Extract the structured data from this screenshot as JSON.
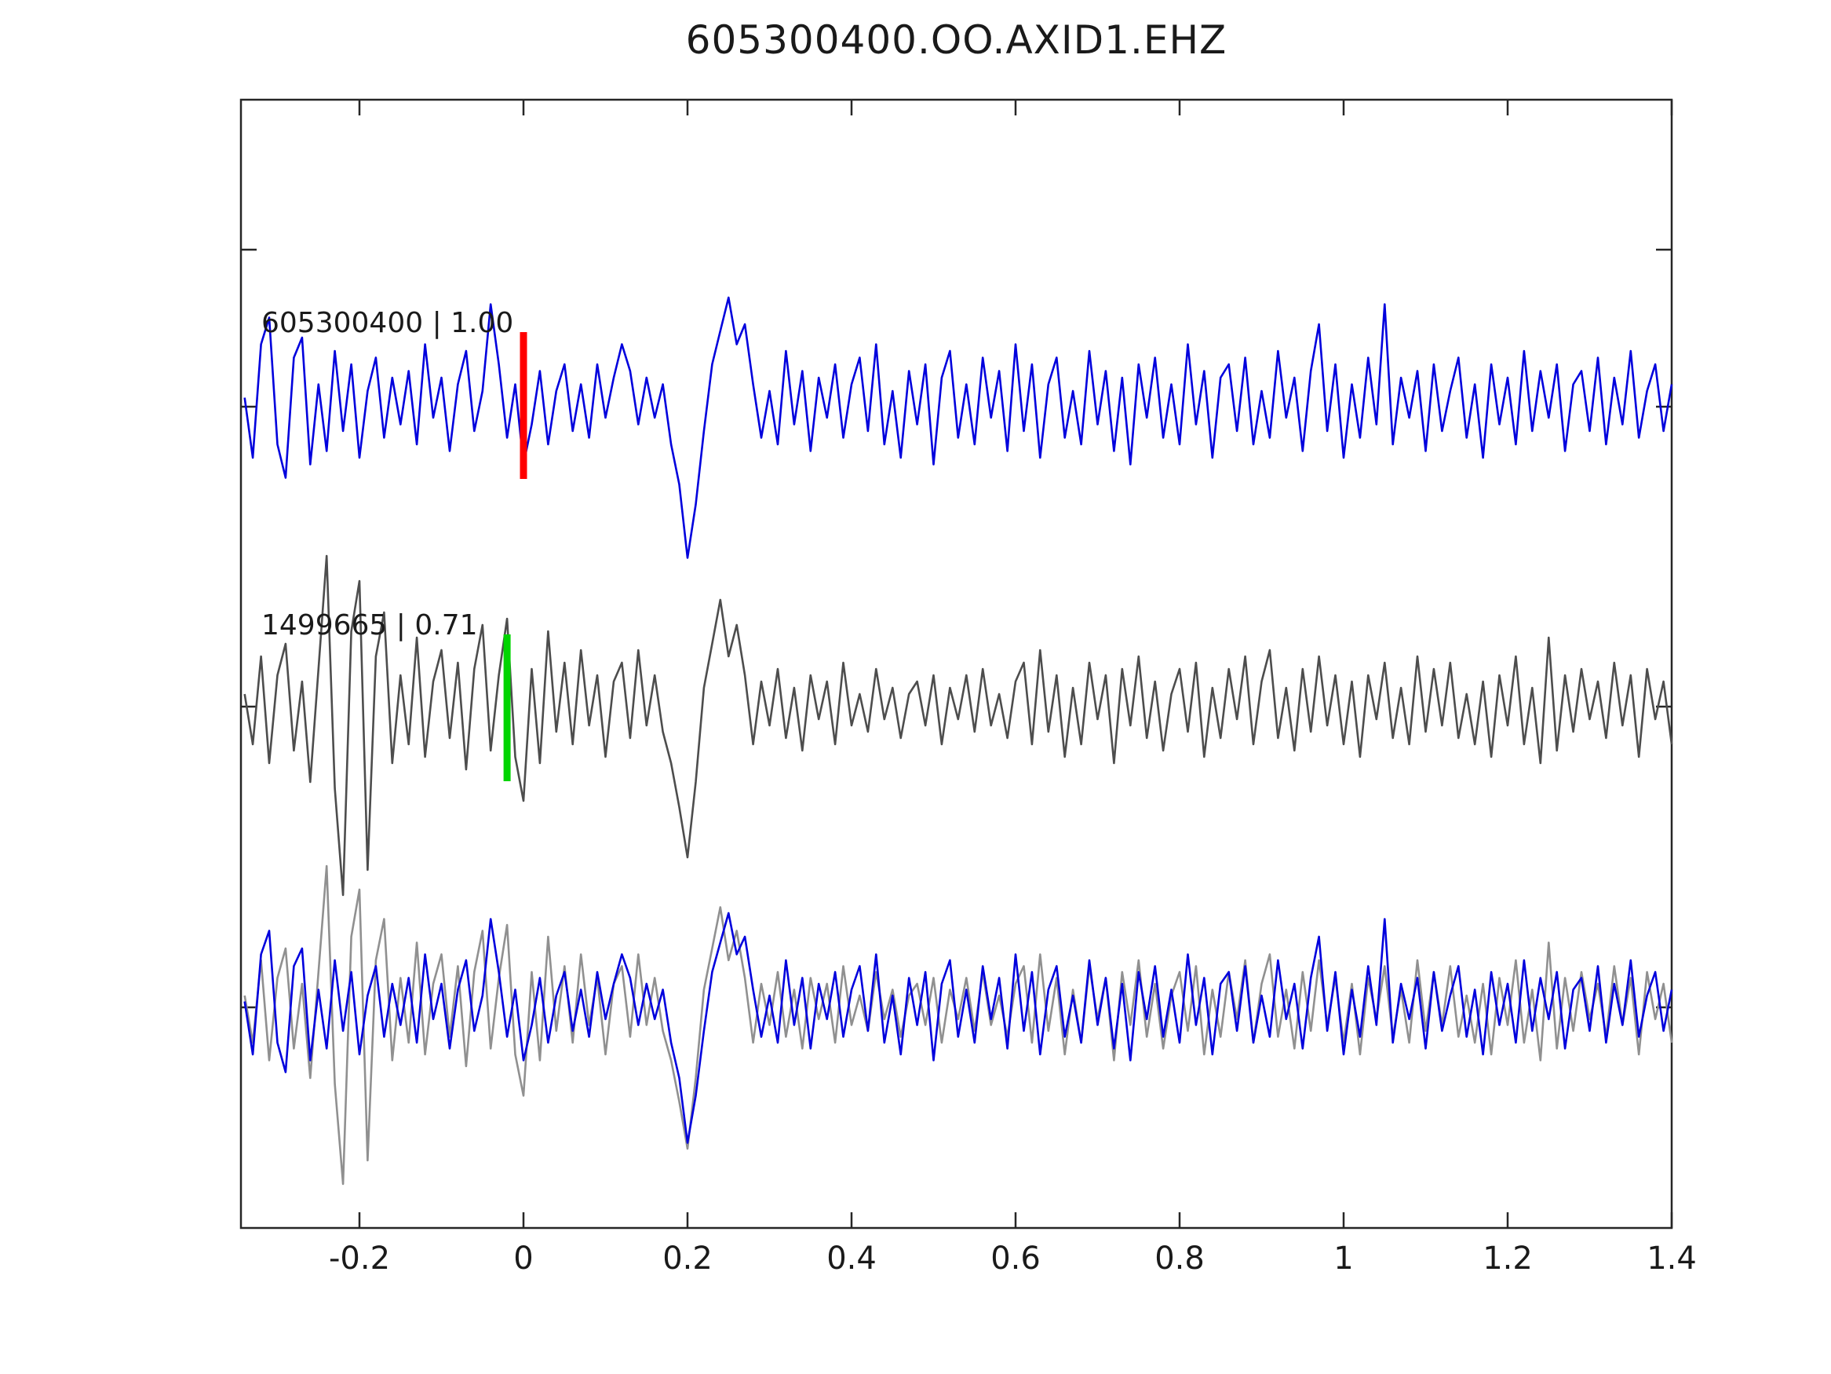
{
  "title": "605300400.OO.AXID1.EHZ",
  "chart_data": {
    "type": "line",
    "title": "605300400.OO.AXID1.EHZ",
    "xlabel": "",
    "ylabel": "",
    "xlim": [
      -0.345,
      1.4
    ],
    "grid": false,
    "legend": false,
    "x_start": -0.34,
    "x_step": 0.01,
    "xticks": [
      -0.2,
      0,
      0.2,
      0.4,
      0.6,
      0.8,
      1,
      1.2,
      1.4
    ],
    "xtick_labels": [
      "-0.2",
      "0",
      "0.2",
      "0.4",
      "0.6",
      "0.8",
      "1",
      "1.2",
      "1.4"
    ],
    "traces": [
      {
        "name": "605300400",
        "color": "#0000dd",
        "values": [
          0.1,
          -0.8,
          0.9,
          1.3,
          -0.6,
          -1.1,
          0.7,
          1.0,
          -0.9,
          0.3,
          -0.7,
          0.8,
          -0.4,
          0.6,
          -0.8,
          0.2,
          0.7,
          -0.5,
          0.4,
          -0.3,
          0.5,
          -0.6,
          0.9,
          -0.2,
          0.4,
          -0.7,
          0.3,
          0.8,
          -0.4,
          0.2,
          1.5,
          0.6,
          -0.5,
          0.3,
          -0.9,
          -0.3,
          0.5,
          -0.6,
          0.2,
          0.6,
          -0.4,
          0.3,
          -0.5,
          0.6,
          -0.2,
          0.4,
          0.9,
          0.5,
          -0.3,
          0.4,
          -0.2,
          0.3,
          -0.6,
          -1.2,
          -2.3,
          -1.5,
          -0.4,
          0.6,
          1.1,
          1.6,
          0.9,
          1.2,
          0.3,
          -0.5,
          0.2,
          -0.6,
          0.8,
          -0.3,
          0.5,
          -0.7,
          0.4,
          -0.2,
          0.6,
          -0.5,
          0.3,
          0.7,
          -0.4,
          0.9,
          -0.6,
          0.2,
          -0.8,
          0.5,
          -0.3,
          0.6,
          -0.9,
          0.4,
          0.8,
          -0.5,
          0.3,
          -0.6,
          0.7,
          -0.2,
          0.5,
          -0.7,
          0.9,
          -0.4,
          0.6,
          -0.8,
          0.3,
          0.7,
          -0.5,
          0.2,
          -0.6,
          0.8,
          -0.3,
          0.5,
          -0.7,
          0.4,
          -0.9,
          0.6,
          -0.2,
          0.7,
          -0.5,
          0.3,
          -0.6,
          0.9,
          -0.3,
          0.5,
          -0.8,
          0.4,
          0.6,
          -0.4,
          0.7,
          -0.6,
          0.2,
          -0.5,
          0.8,
          -0.2,
          0.4,
          -0.7,
          0.5,
          1.2,
          -0.4,
          0.6,
          -0.8,
          0.3,
          -0.5,
          0.7,
          -0.3,
          1.5,
          -0.6,
          0.4,
          -0.2,
          0.5,
          -0.7,
          0.6,
          -0.4,
          0.2,
          0.7,
          -0.5,
          0.3,
          -0.8,
          0.6,
          -0.3,
          0.4,
          -0.6,
          0.8,
          -0.4,
          0.5,
          -0.2,
          0.6,
          -0.7,
          0.3,
          0.5,
          -0.4,
          0.7,
          -0.6,
          0.4,
          -0.3,
          0.8,
          -0.5,
          0.2,
          0.6,
          -0.4,
          0.3
        ]
      },
      {
        "name": "1499665",
        "color": "#4d4d4d",
        "values": [
          0.2,
          -0.6,
          0.8,
          -0.9,
          0.5,
          1.0,
          -0.7,
          0.4,
          -1.2,
          0.6,
          2.4,
          -1.3,
          -3.0,
          1.2,
          2.0,
          -2.6,
          0.8,
          1.5,
          -0.9,
          0.5,
          -0.6,
          1.1,
          -0.8,
          0.4,
          0.9,
          -0.5,
          0.7,
          -1.0,
          0.6,
          1.3,
          -0.7,
          0.5,
          1.4,
          -0.8,
          -1.5,
          0.6,
          -0.9,
          1.2,
          -0.4,
          0.7,
          -0.6,
          0.9,
          -0.3,
          0.5,
          -0.8,
          0.4,
          0.7,
          -0.5,
          0.9,
          -0.3,
          0.5,
          -0.4,
          -0.9,
          -1.6,
          -2.4,
          -1.2,
          0.3,
          1.0,
          1.7,
          0.8,
          1.3,
          0.5,
          -0.6,
          0.4,
          -0.3,
          0.6,
          -0.5,
          0.3,
          -0.7,
          0.5,
          -0.2,
          0.4,
          -0.6,
          0.7,
          -0.3,
          0.2,
          -0.4,
          0.6,
          -0.2,
          0.3,
          -0.5,
          0.2,
          0.4,
          -0.3,
          0.5,
          -0.6,
          0.3,
          -0.2,
          0.5,
          -0.4,
          0.6,
          -0.3,
          0.2,
          -0.5,
          0.4,
          0.7,
          -0.6,
          0.9,
          -0.4,
          0.5,
          -0.8,
          0.3,
          -0.6,
          0.7,
          -0.2,
          0.5,
          -0.9,
          0.6,
          -0.3,
          0.8,
          -0.5,
          0.4,
          -0.7,
          0.2,
          0.6,
          -0.4,
          0.7,
          -0.8,
          0.3,
          -0.5,
          0.6,
          -0.2,
          0.8,
          -0.6,
          0.4,
          0.9,
          -0.5,
          0.3,
          -0.7,
          0.6,
          -0.4,
          0.8,
          -0.3,
          0.5,
          -0.6,
          0.4,
          -0.8,
          0.5,
          -0.2,
          0.7,
          -0.5,
          0.3,
          -0.6,
          0.8,
          -0.4,
          0.6,
          -0.3,
          0.7,
          -0.5,
          0.2,
          -0.6,
          0.4,
          -0.8,
          0.5,
          -0.3,
          0.8,
          -0.6,
          0.3,
          -0.9,
          1.1,
          -0.7,
          0.5,
          -0.4,
          0.6,
          -0.2,
          0.4,
          -0.5,
          0.7,
          -0.3,
          0.5,
          -0.8,
          0.6,
          -0.2,
          0.4,
          -0.6
        ]
      }
    ],
    "panels": [
      {
        "trace": "605300400",
        "label": "605300400 | 1.00",
        "marker": {
          "x": 0,
          "color": "#ff0000"
        }
      },
      {
        "trace": "1499665",
        "label": "1499665 | 0.71",
        "marker": {
          "x": -0.02,
          "color": "#00d400"
        }
      },
      {
        "overlay": [
          "1499665",
          "605300400"
        ],
        "overlay_colors": [
          "#909090",
          "#0000dd"
        ]
      }
    ]
  }
}
